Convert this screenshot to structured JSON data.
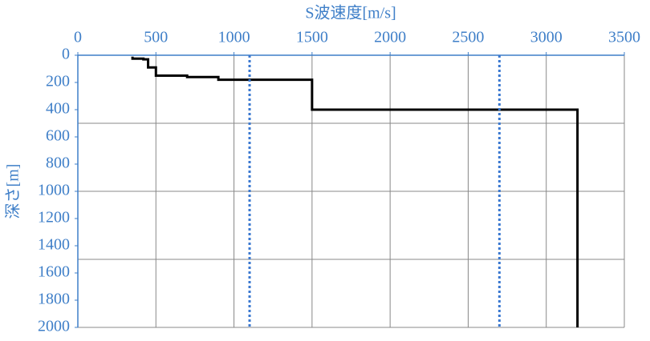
{
  "chart_data": {
    "type": "line",
    "xlabel": "S波速度[m/s]",
    "ylabel": "深さ[m]",
    "xlim": [
      0,
      3500
    ],
    "xticks": [
      0,
      500,
      1000,
      1500,
      2000,
      2500,
      3000,
      3500
    ],
    "ylim": [
      0,
      2000
    ],
    "yticks": [
      0,
      200,
      400,
      600,
      800,
      1000,
      1200,
      1400,
      1600,
      1800,
      2000
    ],
    "y_inverted": true,
    "x_axis_position": "top",
    "xgrid": [
      500,
      1000,
      1500,
      2000,
      2500,
      3000,
      3500
    ],
    "ygrid": [
      500,
      1000,
      1500,
      2000
    ],
    "series": [
      {
        "color": "#000000",
        "dash": "solid",
        "x": [
          350,
          350,
          420,
          420,
          450,
          450,
          500,
          500,
          700,
          700,
          900,
          900,
          1500,
          1500,
          3200,
          3200
        ],
        "values": [
          10,
          25,
          25,
          30,
          30,
          90,
          90,
          150,
          150,
          160,
          160,
          180,
          180,
          400,
          400,
          2000
        ]
      },
      {
        "color": "#3a78d0",
        "dash": "dotted",
        "x": [
          1100,
          1100
        ],
        "values": [
          0,
          2000
        ]
      },
      {
        "color": "#3a78d0",
        "dash": "dotted",
        "x": [
          2700,
          2700
        ],
        "values": [
          0,
          2000
        ]
      }
    ]
  }
}
